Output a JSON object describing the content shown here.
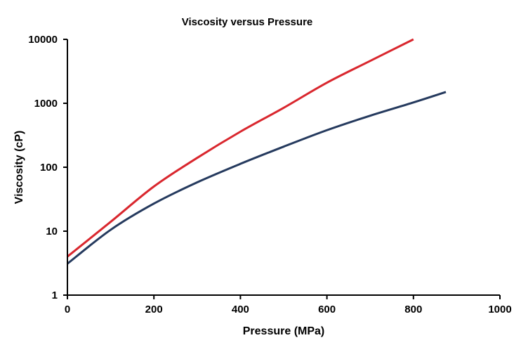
{
  "chart_data": {
    "type": "line",
    "title": "Viscosity versus Pressure",
    "xlabel": "Pressure (MPa)",
    "ylabel": "Viscosity (cP)",
    "xlim": [
      0,
      1000
    ],
    "ylim": [
      1,
      10000
    ],
    "yscale": "log",
    "grid": false,
    "xticks": [
      "0",
      "200",
      "400",
      "600",
      "800",
      "1000"
    ],
    "yticks": [
      "1",
      "10",
      "100",
      "1000",
      "10000"
    ],
    "series": [
      {
        "name": "red-curve",
        "color": "#d9272e",
        "x": [
          0,
          100,
          200,
          300,
          400,
          500,
          600,
          700,
          800
        ],
        "y": [
          4,
          14,
          50,
          140,
          360,
          850,
          2100,
          4600,
          10000
        ]
      },
      {
        "name": "blue-curve",
        "color": "#253a5e",
        "x": [
          0,
          100,
          200,
          300,
          400,
          500,
          600,
          700,
          800,
          875
        ],
        "y": [
          3.1,
          10.5,
          27,
          58,
          113,
          210,
          380,
          640,
          1030,
          1500
        ]
      }
    ]
  }
}
